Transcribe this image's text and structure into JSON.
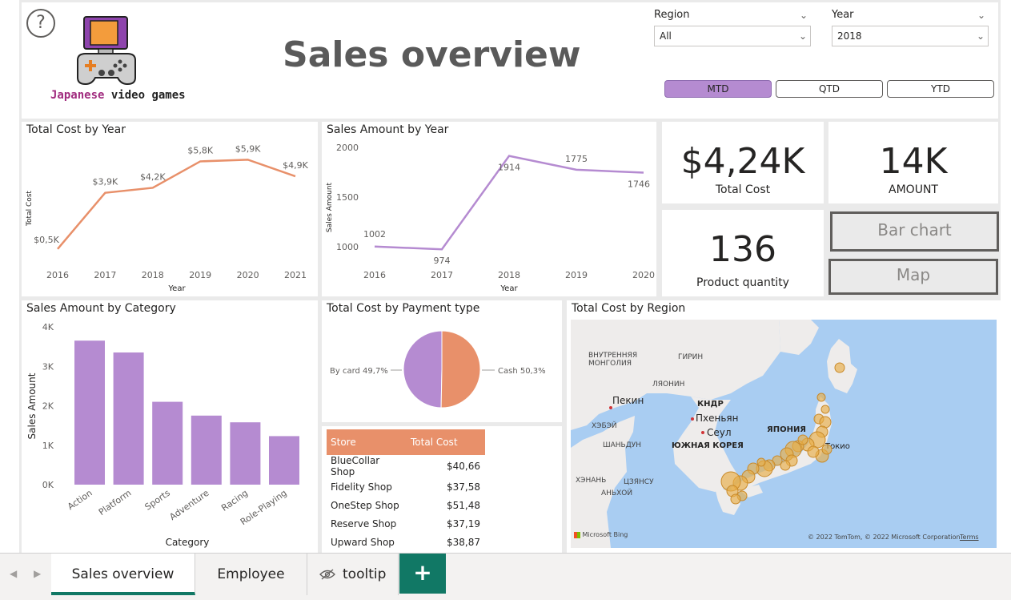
{
  "header": {
    "help_label": "?",
    "logo_text_1": "Japanese",
    "logo_text_2": "video games",
    "title": "Sales overview",
    "region": {
      "label": "Region",
      "value": "All"
    },
    "year": {
      "label": "Year",
      "value": "2018"
    },
    "period_buttons": [
      {
        "label": "MTD",
        "active": true
      },
      {
        "label": "QTD",
        "active": false
      },
      {
        "label": "YTD",
        "active": false
      }
    ]
  },
  "kpis": {
    "total_cost": {
      "value": "$4,24K",
      "label": "Total Cost"
    },
    "amount": {
      "value": "14K",
      "label": "AMOUNT"
    },
    "product_quantity": {
      "value": "136",
      "label": "Product quantity"
    }
  },
  "nav_buttons": {
    "bar_chart": "Bar chart",
    "map": "Map"
  },
  "chart_data": [
    {
      "type": "line",
      "title": "Total Cost by Year",
      "xlabel": "Year",
      "ylabel": "Total Cost",
      "x": [
        "2016",
        "2017",
        "2018",
        "2019",
        "2020",
        "2021"
      ],
      "values": [
        0.5,
        3.9,
        4.2,
        5.8,
        5.9,
        4.9
      ],
      "data_labels": [
        "$0,5K",
        "$3,9K",
        "$4,2K",
        "$5,8K",
        "$5,9K",
        "$4,9K"
      ],
      "color": "#e8906a"
    },
    {
      "type": "line",
      "title": "Sales Amount by Year",
      "xlabel": "Year",
      "ylabel": "Sales Amount",
      "x": [
        "2016",
        "2017",
        "2018",
        "2019",
        "2020"
      ],
      "values": [
        1002,
        974,
        1914,
        1775,
        1746
      ],
      "data_labels": [
        "1002",
        "974",
        "1914",
        "1775",
        "1746"
      ],
      "yticks": [
        "1000",
        "1500",
        "2000"
      ],
      "color": "#b58bd1"
    },
    {
      "type": "bar",
      "title": "Sales Amount by Category",
      "xlabel": "Category",
      "ylabel": "Sales Amount",
      "categories": [
        "Action",
        "Platform",
        "Sports",
        "Adventure",
        "Racing",
        "Role-Playing"
      ],
      "values": [
        3650,
        3350,
        2100,
        1750,
        1580,
        1230
      ],
      "yticks": [
        "0K",
        "1K",
        "2K",
        "3K",
        "4K"
      ],
      "ylim": [
        0,
        4000
      ],
      "color": "#b58bd1"
    },
    {
      "type": "pie",
      "title": "Total Cost by Payment type",
      "slices": [
        {
          "name": "By card",
          "value": 49.7,
          "label": "By card 49,7%",
          "color": "#b58bd1"
        },
        {
          "name": "Cash",
          "value": 50.3,
          "label": "Cash 50,3%",
          "color": "#e8906a"
        }
      ]
    }
  ],
  "store_table": {
    "columns": [
      "Store",
      "Total Cost"
    ],
    "rows": [
      [
        "BlueCollar Shop",
        "$40,66"
      ],
      [
        "Fidelity Shop",
        "$37,58"
      ],
      [
        "OneStep Shop",
        "$51,48"
      ],
      [
        "Reserve Shop",
        "$37,19"
      ],
      [
        "Upward Shop",
        "$38,87"
      ]
    ]
  },
  "map": {
    "title": "Total Cost by Region",
    "labels": {
      "mongolia": "ВНУТРЕННЯЯ МОНГОЛИЯ",
      "girin": "ГИРИН",
      "liaoning": "ЛЯОНИН",
      "beijing": "Пекин",
      "north_korea": "КНДР",
      "pyongyang": "Пхеньян",
      "seoul": "Сеул",
      "south_korea": "ЮЖНАЯ КОРЕЯ",
      "japan": "ЯПОНИЯ",
      "tokyo": "Токио",
      "hebei": "ХЭБЭЙ",
      "shandong": "ШАНЬДУН",
      "jiangsu": "ЦЗЯНСУ",
      "anhui": "АНЬХОЙ",
      "henan": "ХЭНАНЬ"
    },
    "credits": {
      "bing": "Microsoft Bing",
      "copyright": "© 2022 TomTom, © 2022 Microsoft Corporation",
      "terms": "Terms"
    }
  },
  "tabs": [
    {
      "label": "Sales overview",
      "active": true
    },
    {
      "label": "Employee",
      "active": false
    },
    {
      "label": "tooltip",
      "active": false
    }
  ],
  "tab_add_label": "+"
}
